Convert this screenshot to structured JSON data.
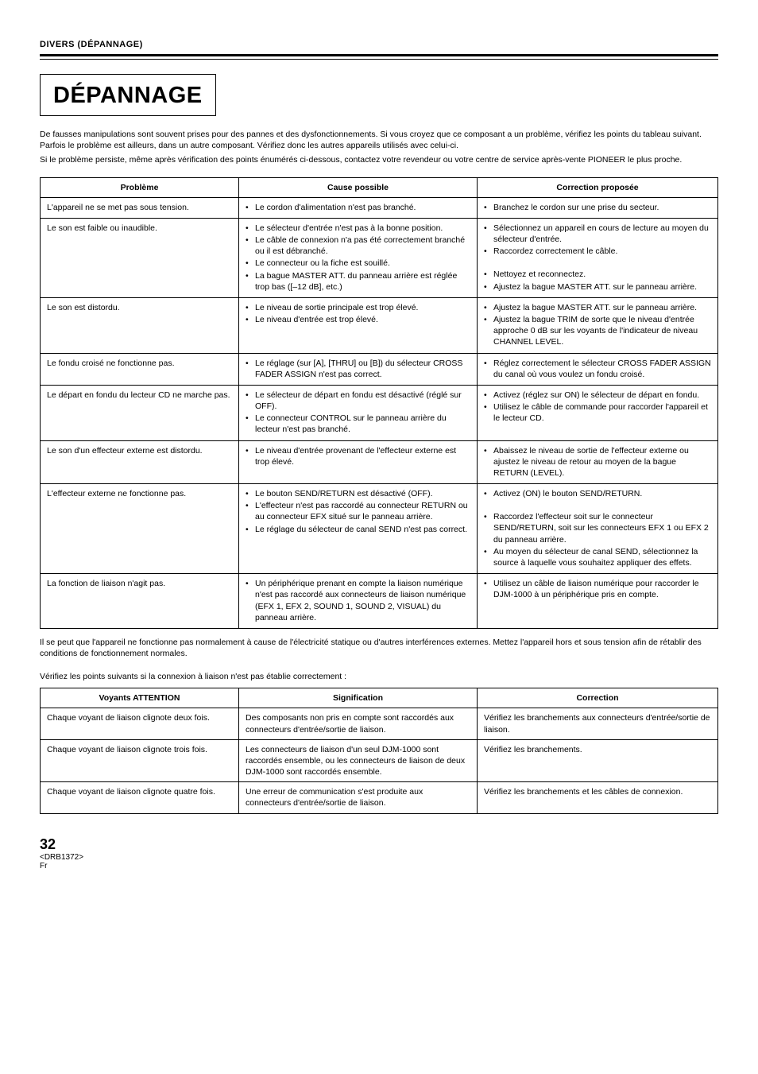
{
  "header": {
    "section": "DIVERS (DÉPANNAGE)"
  },
  "title": "DÉPANNAGE",
  "intro1": "De fausses manipulations sont souvent prises pour des pannes et des dysfonctionnements. Si vous croyez que ce composant a un problème, vérifiez les points du tableau suivant. Parfois le problème est ailleurs, dans un autre composant. Vérifiez donc les autres appareils utilisés avec celui-ci.",
  "intro2": "Si le problème persiste, même après vérification des points énumérés ci-dessous, contactez votre revendeur ou votre centre de service après-vente PIONEER le plus proche.",
  "table1": {
    "headers": {
      "c1": "Problème",
      "c2": "Cause possible",
      "c3": "Correction proposée"
    },
    "rows": [
      {
        "problem": "L'appareil ne se met pas sous tension.",
        "causes": [
          "Le cordon d'alimentation n'est pas branché."
        ],
        "fixes": [
          "Branchez le cordon sur une prise du secteur."
        ]
      },
      {
        "problem": "Le son est faible ou inaudible.",
        "causes": [
          "Le sélecteur d'entrée n'est pas à la bonne position.",
          "Le câble de connexion n'a pas été correctement branché ou il est débranché.",
          "Le connecteur ou la fiche est souillé.",
          "La bague MASTER ATT. du panneau arrière est réglée trop bas ([–12 dB], etc.)"
        ],
        "fixes": [
          "Sélectionnez un appareil en cours de lecture au moyen du sélecteur d'entrée.",
          "Raccordez correctement le câble.",
          "",
          "Nettoyez et reconnectez.",
          "Ajustez la bague MASTER ATT. sur le panneau arrière."
        ]
      },
      {
        "problem": "Le son est distordu.",
        "causes": [
          "Le niveau de sortie principale est trop élevé.",
          "Le niveau d'entrée est trop élevé."
        ],
        "fixes": [
          "Ajustez la bague MASTER ATT. sur le panneau arrière.",
          "Ajustez la bague TRIM de sorte que le niveau d'entrée approche 0 dB sur les voyants de l'indicateur de niveau CHANNEL LEVEL."
        ]
      },
      {
        "problem": "Le fondu croisé ne fonctionne pas.",
        "causes": [
          "Le réglage (sur [A], [THRU] ou [B]) du sélecteur CROSS FADER ASSIGN n'est pas correct."
        ],
        "fixes": [
          "Réglez correctement le sélecteur CROSS FADER ASSIGN du canal où vous voulez un fondu croisé."
        ]
      },
      {
        "problem": "Le départ en fondu du lecteur CD ne marche pas.",
        "causes": [
          "Le sélecteur de départ en fondu est désactivé (réglé sur OFF).",
          "Le connecteur CONTROL sur le panneau arrière du lecteur n'est pas branché."
        ],
        "fixes": [
          "Activez (réglez sur ON) le sélecteur de départ en fondu.",
          "Utilisez le câble de commande pour raccorder l'appareil et le lecteur CD."
        ]
      },
      {
        "problem": "Le son d'un effecteur externe est distordu.",
        "causes": [
          "Le niveau d'entrée provenant de l'effecteur externe est trop élevé."
        ],
        "fixes": [
          "Abaissez le niveau de sortie de l'effecteur externe ou ajustez le niveau de retour au moyen de la bague RETURN (LEVEL)."
        ]
      },
      {
        "problem": "L'effecteur externe ne fonctionne pas.",
        "causes": [
          "Le bouton SEND/RETURN est désactivé (OFF).",
          "L'effecteur n'est pas raccordé au connecteur RETURN ou au connecteur EFX situé sur le panneau arrière.",
          "Le réglage du sélecteur de canal SEND n'est pas correct."
        ],
        "fixes": [
          "Activez (ON) le bouton SEND/RETURN.",
          "",
          "Raccordez l'effecteur soit sur le connecteur SEND/RETURN, soit sur les connecteurs EFX 1 ou EFX 2 du panneau arrière.",
          "Au moyen du sélecteur de canal SEND, sélectionnez la source à laquelle vous souhaitez appliquer des effets."
        ]
      },
      {
        "problem": "La fonction de liaison n'agit pas.",
        "causes": [
          "Un périphérique prenant en compte la liaison numérique n'est pas raccordé aux connecteurs de liaison numérique (EFX 1, EFX 2, SOUND 1, SOUND 2, VISUAL) du panneau arrière."
        ],
        "fixes": [
          "Utilisez un câble de liaison numérique pour raccorder le DJM-1000 à un périphérique pris en compte."
        ]
      }
    ]
  },
  "mid1": "Il se peut que l'appareil ne fonctionne pas normalement à cause de l'électricité statique ou d'autres interférences externes. Mettez l'appareil hors et sous tension afin de rétablir des conditions de fonctionnement normales.",
  "mid2": "Vérifiez les points suivants si la connexion à liaison n'est pas établie correctement :",
  "table2": {
    "headers": {
      "c1": "Voyants ATTENTION",
      "c2": "Signification",
      "c3": "Correction"
    },
    "rows": [
      {
        "c1": "Chaque voyant de liaison clignote deux fois.",
        "c2": "Des composants non pris en compte sont raccordés aux connecteurs d'entrée/sortie de liaison.",
        "c3": "Vérifiez les branchements aux connecteurs d'entrée/sortie de liaison."
      },
      {
        "c1": "Chaque voyant de liaison clignote trois fois.",
        "c2": "Les connecteurs de liaison d'un seul DJM-1000 sont raccordés ensemble, ou les connecteurs de liaison de deux DJM-1000 sont raccordés ensemble.",
        "c3": "Vérifiez les branchements."
      },
      {
        "c1": "Chaque voyant de liaison clignote quatre fois.",
        "c2": "Une erreur de communication s'est produite aux connecteurs d'entrée/sortie de liaison.",
        "c3": "Vérifiez les branchements et les câbles de connexion."
      }
    ]
  },
  "footer": {
    "page": "32",
    "code": "<DRB1372>",
    "lang": "Fr"
  }
}
